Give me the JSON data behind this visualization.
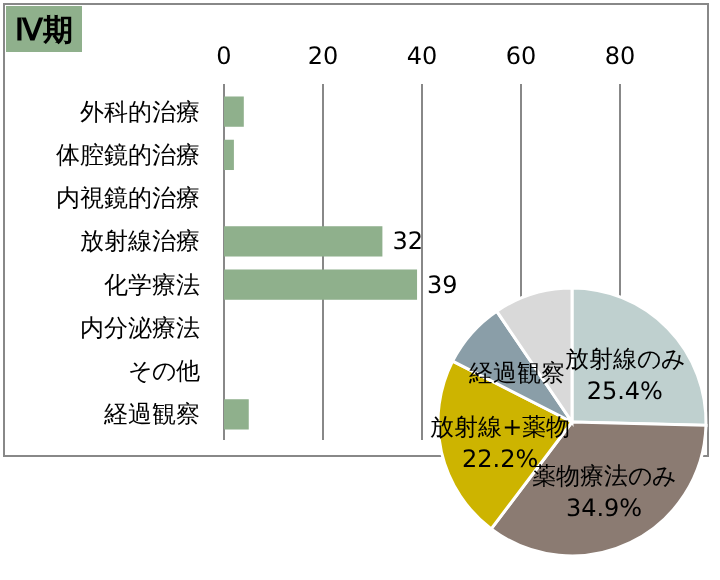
{
  "chart_data": [
    {
      "type": "bar",
      "title": "Ⅳ期",
      "orientation": "horizontal",
      "categories": [
        "外科的治療",
        "体腔鏡的治療",
        "内視鏡的治療",
        "放射線治療",
        "化学療法",
        "内分泌療法",
        "その他",
        "経過観察"
      ],
      "values": [
        4,
        2,
        0,
        32,
        39,
        0,
        0,
        5
      ],
      "value_labels": [
        null,
        null,
        null,
        "32",
        "39",
        null,
        null,
        null
      ],
      "color": "#8fb08c",
      "xlim": [
        0,
        80
      ],
      "xticks": [
        0,
        20,
        40,
        60,
        80
      ],
      "grid": "x"
    },
    {
      "type": "pie",
      "categories": [
        "放射線のみ",
        "薬物療法のみ",
        "放射線+薬物",
        "経過観察",
        null
      ],
      "values": [
        25.4,
        34.9,
        22.2,
        8,
        9.5
      ],
      "value_labels": [
        "25.4%",
        "34.9%",
        "22.2%",
        null,
        null
      ],
      "colors": [
        "#bfd0cf",
        "#8b7b72",
        "#cdb400",
        "#8a9ea8",
        "#d9d9d9"
      ]
    }
  ]
}
